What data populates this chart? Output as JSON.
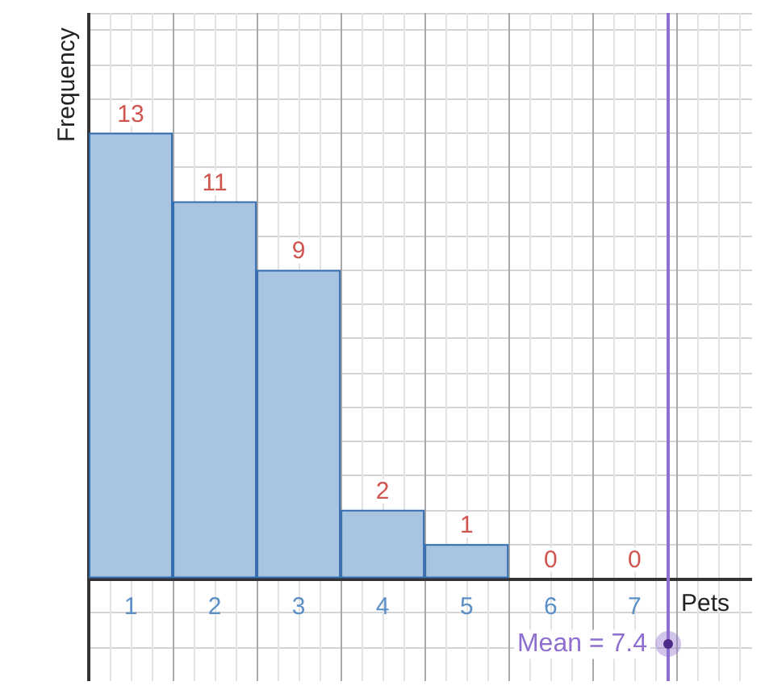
{
  "chart_data": {
    "type": "bar",
    "xlabel": "Pets",
    "ylabel": "Frequency",
    "x": [
      1,
      2,
      3,
      4,
      5,
      6,
      7
    ],
    "values": [
      13,
      11,
      9,
      2,
      1,
      0,
      0
    ],
    "color": "#a9c4e0",
    "data_labels": true,
    "xlim": [
      0.5,
      8.4
    ],
    "xticks": [
      1,
      2,
      3,
      4,
      5,
      6,
      7
    ],
    "ylim": [
      -3,
      16.5
    ],
    "tick_labels": "x",
    "grid": true,
    "ref_lines": [
      {
        "axis": "x",
        "value": 7.4,
        "label": "Mean = 7.4",
        "color": "#8e6fd0"
      }
    ]
  }
}
